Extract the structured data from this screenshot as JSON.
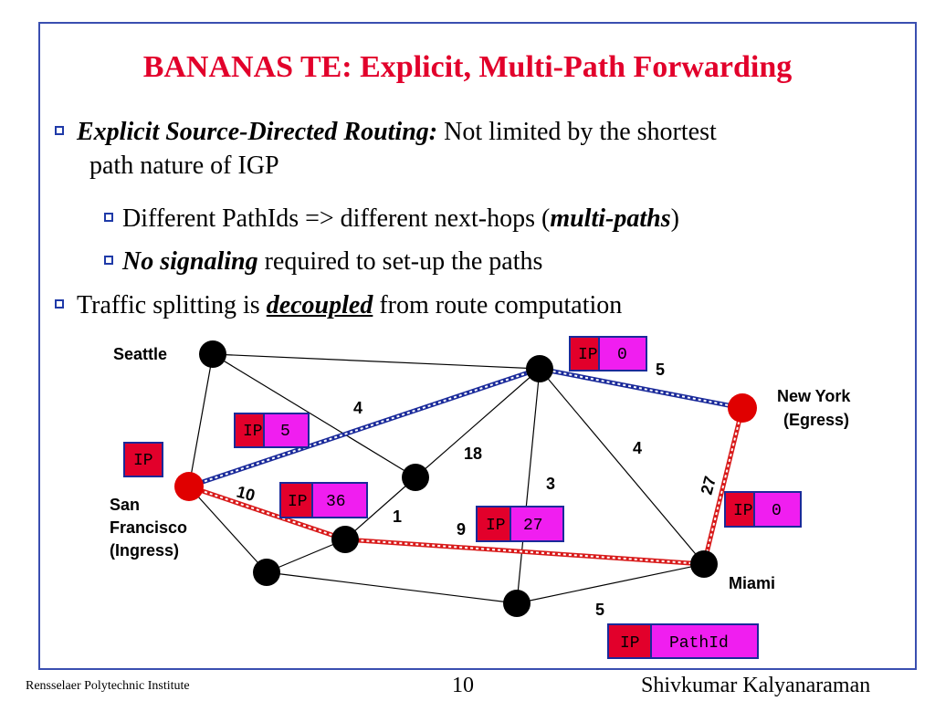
{
  "title": "BANANAS TE: Explicit, Multi-Path Forwarding",
  "bullets": {
    "b1_bold": "Explicit Source-Directed Routing:",
    "b1_rest": " Not limited by the shortest",
    "b1_line2": "path nature of IGP",
    "b2_pre": "Different PathIds => different next-hops (",
    "b2_bold": "multi-paths",
    "b2_post": ")",
    "b3_bold": "No signaling",
    "b3_rest": " required to set-up the paths",
    "b4_pre": "Traffic splitting is ",
    "b4_bold": "decoupled",
    "b4_post": " from route computation"
  },
  "nodes": {
    "seattle": "Seattle",
    "sf1": "San",
    "sf2": "Francisco",
    "sf3": "(Ingress)",
    "ny1": "New York",
    "ny2": "(Egress)",
    "miami": "Miami"
  },
  "weights": {
    "w5_top": "5",
    "w4_a": "4",
    "w18": "18",
    "w4_b": "4",
    "w3": "3",
    "w27": "27",
    "w10": "10",
    "w1": "1",
    "w9": "9",
    "w5_bottom": "5"
  },
  "tags": {
    "ip": "IP",
    "t_top": "0",
    "t_left": "5",
    "t_mid": "36",
    "t_center": "27",
    "t_right": "0",
    "legend": "PathId"
  },
  "colors": {
    "red": "#e2002b",
    "magenta": "#f01ef0",
    "node_black": "#000000",
    "node_red": "#e00000",
    "path_blue": "#1a2a9a",
    "path_red": "#d81a1a",
    "border": "#3a4fb0"
  },
  "footer": {
    "left": "Rensselaer Polytechnic Institute",
    "page": "10",
    "right": "Shivkumar Kalyanaraman"
  }
}
